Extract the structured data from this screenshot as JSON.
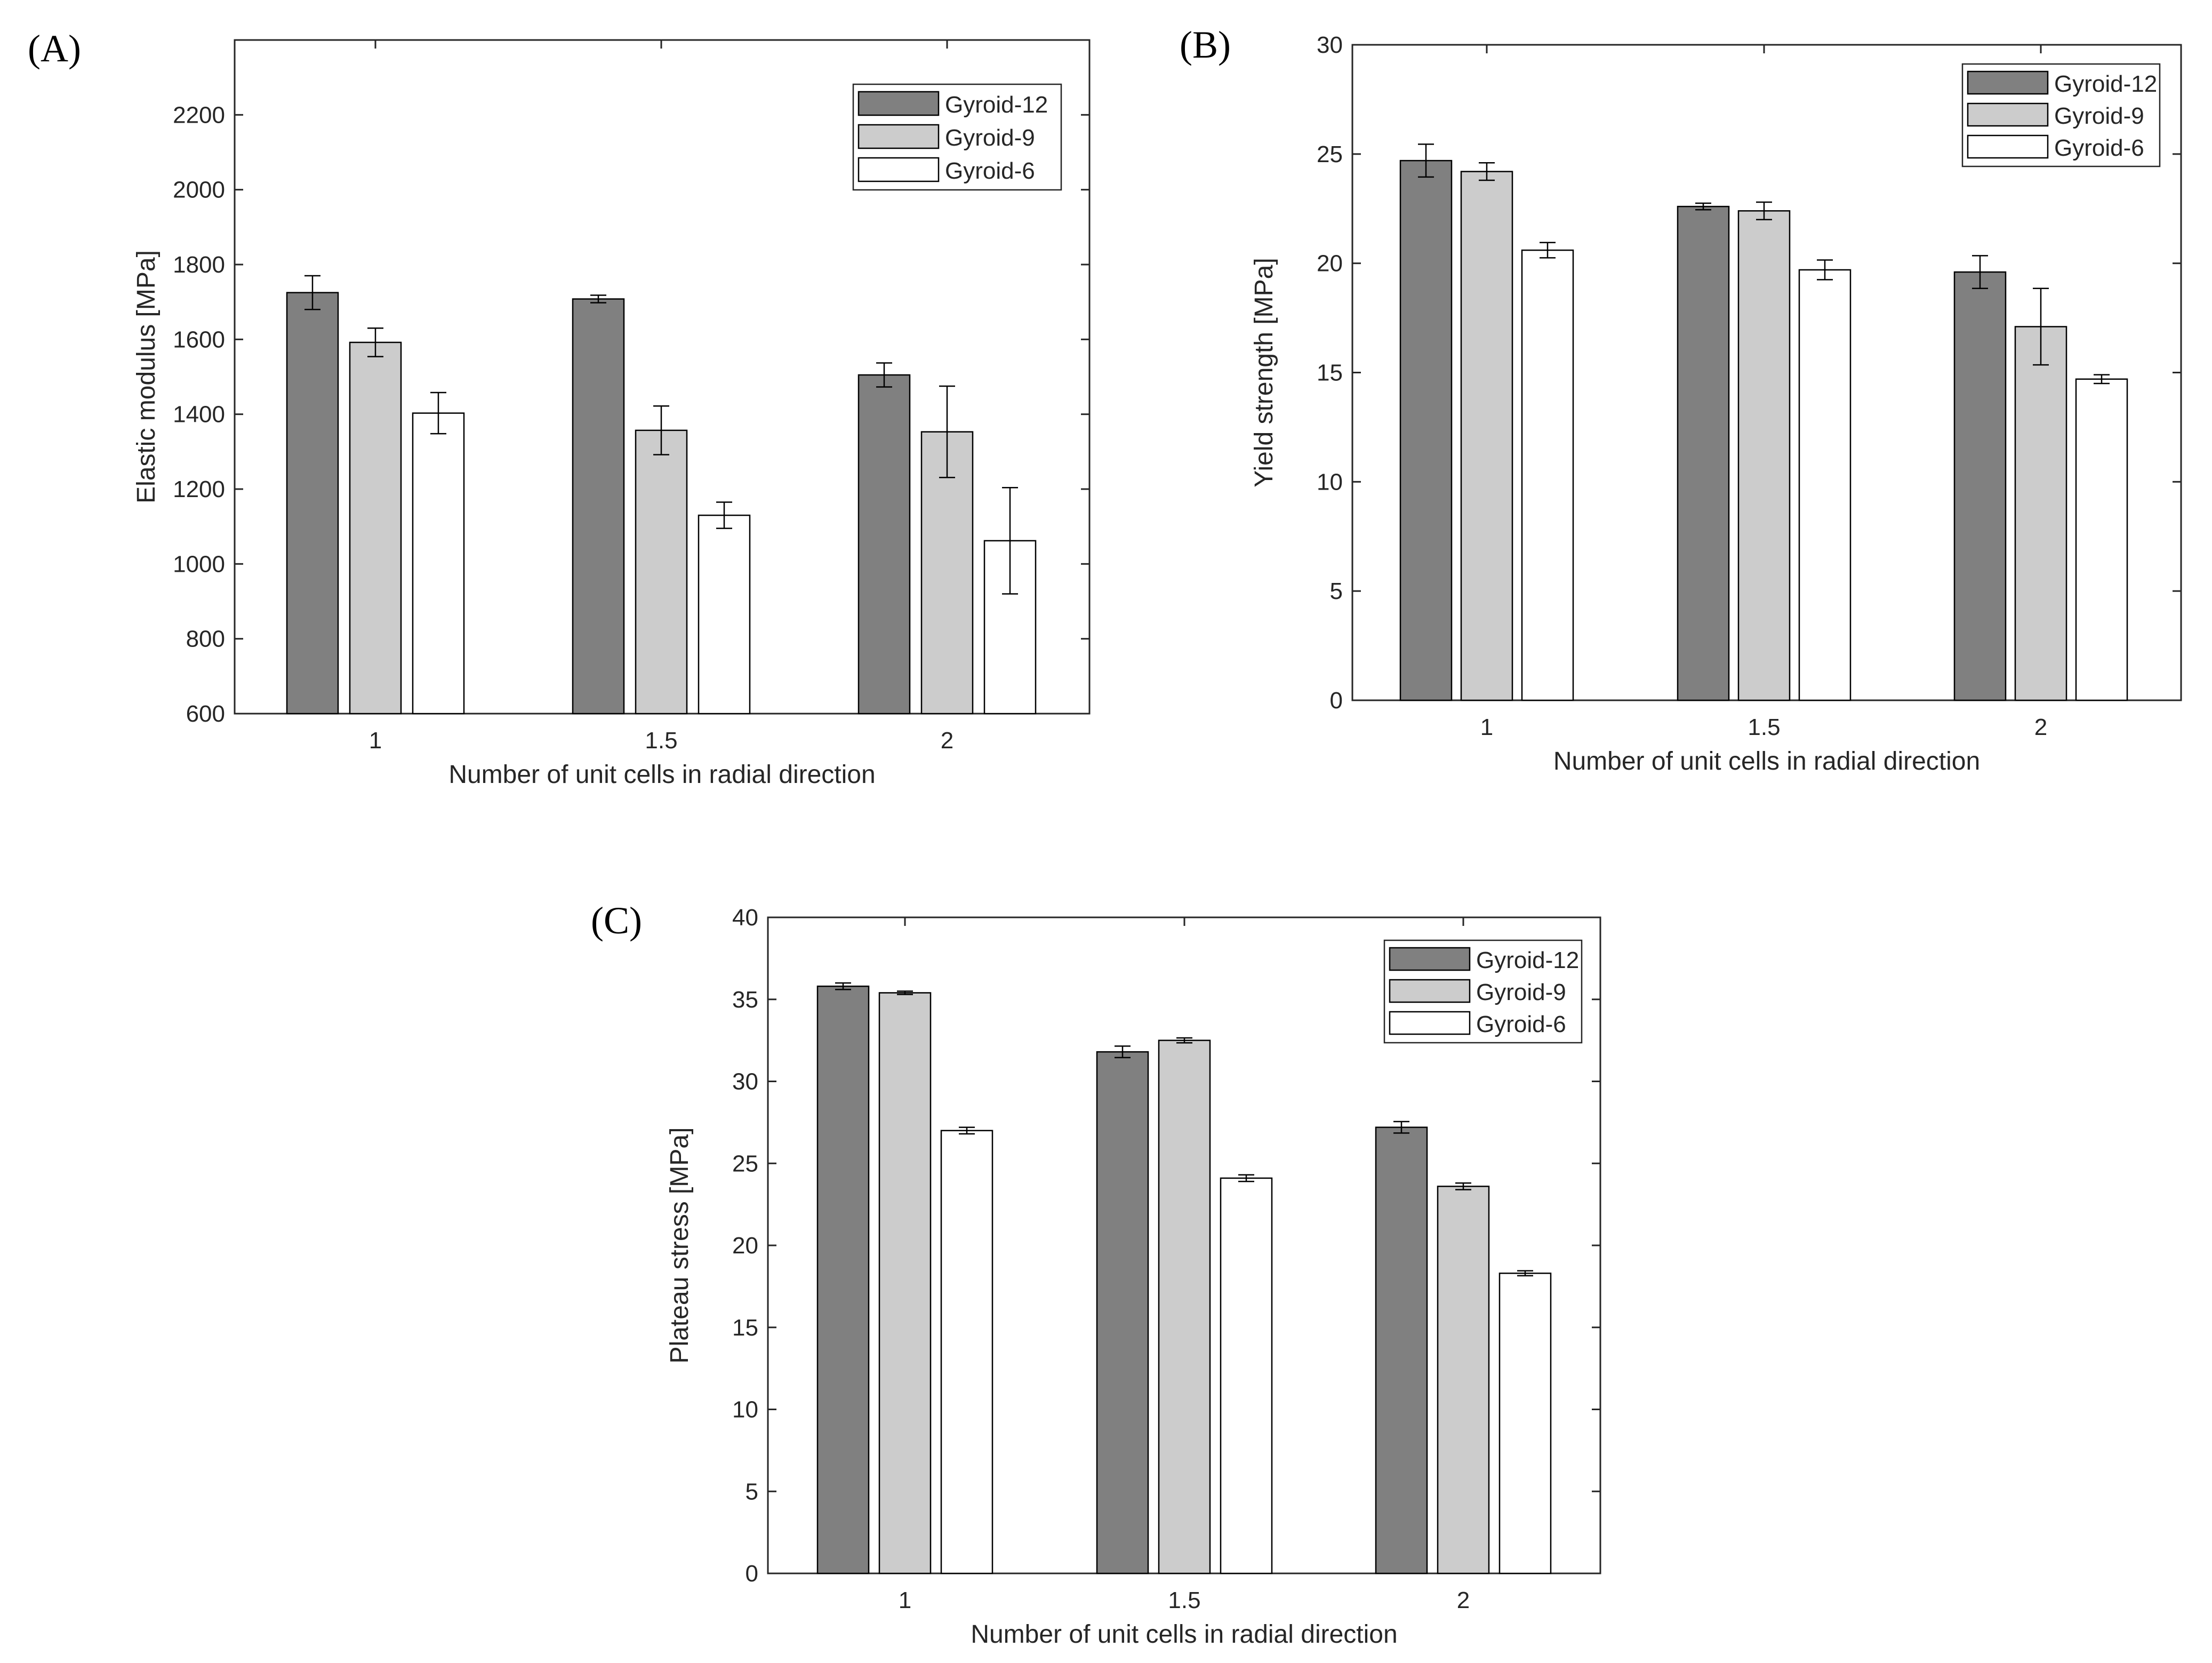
{
  "chart_data": [
    {
      "type": "bar",
      "panel_label": "(A)",
      "categories": [
        "1",
        "1.5",
        "2"
      ],
      "xlabel": "Number of unit cells in radial direction",
      "ylabel": "Elastic modulus [MPa]",
      "ylim": [
        600,
        2400
      ],
      "yticks": [
        600,
        800,
        1000,
        1200,
        1400,
        1600,
        1800,
        2000,
        2200
      ],
      "legend_position": "top-right",
      "series": [
        {
          "name": "Gyroid-12",
          "color": "#808080",
          "values": [
            1725,
            1708,
            1505
          ],
          "errors": [
            45,
            10,
            32
          ]
        },
        {
          "name": "Gyroid-9",
          "color": "#cccccc",
          "values": [
            1592,
            1357,
            1353
          ],
          "errors": [
            38,
            65,
            122
          ]
        },
        {
          "name": "Gyroid-6",
          "color": "#ffffff",
          "values": [
            1403,
            1130,
            1062
          ],
          "errors": [
            55,
            35,
            142
          ]
        }
      ]
    },
    {
      "type": "bar",
      "panel_label": "(B)",
      "categories": [
        "1",
        "1.5",
        "2"
      ],
      "xlabel": "Number of unit cells in radial direction",
      "ylabel": "Yield strength [MPa]",
      "ylim": [
        0,
        30
      ],
      "yticks": [
        0,
        5,
        10,
        15,
        20,
        25,
        30
      ],
      "legend_position": "top-right",
      "series": [
        {
          "name": "Gyroid-12",
          "color": "#808080",
          "values": [
            24.7,
            22.6,
            19.6
          ],
          "errors": [
            0.75,
            0.15,
            0.75
          ]
        },
        {
          "name": "Gyroid-9",
          "color": "#cccccc",
          "values": [
            24.2,
            22.4,
            17.1
          ],
          "errors": [
            0.4,
            0.4,
            1.75
          ]
        },
        {
          "name": "Gyroid-6",
          "color": "#ffffff",
          "values": [
            20.6,
            19.7,
            14.7
          ],
          "errors": [
            0.35,
            0.45,
            0.2
          ]
        }
      ]
    },
    {
      "type": "bar",
      "panel_label": "(C)",
      "categories": [
        "1",
        "1.5",
        "2"
      ],
      "xlabel": "Number of unit cells in radial direction",
      "ylabel": "Plateau stress [MPa]",
      "ylim": [
        0,
        40
      ],
      "yticks": [
        0,
        5,
        10,
        15,
        20,
        25,
        30,
        35,
        40
      ],
      "legend_position": "top-right",
      "series": [
        {
          "name": "Gyroid-12",
          "color": "#808080",
          "values": [
            35.8,
            31.8,
            27.2
          ],
          "errors": [
            0.2,
            0.35,
            0.35
          ]
        },
        {
          "name": "Gyroid-9",
          "color": "#cccccc",
          "values": [
            35.4,
            32.5,
            23.6
          ],
          "errors": [
            0.1,
            0.15,
            0.2
          ]
        },
        {
          "name": "Gyroid-6",
          "color": "#ffffff",
          "values": [
            27.0,
            24.1,
            18.3
          ],
          "errors": [
            0.2,
            0.2,
            0.15
          ]
        }
      ]
    }
  ]
}
